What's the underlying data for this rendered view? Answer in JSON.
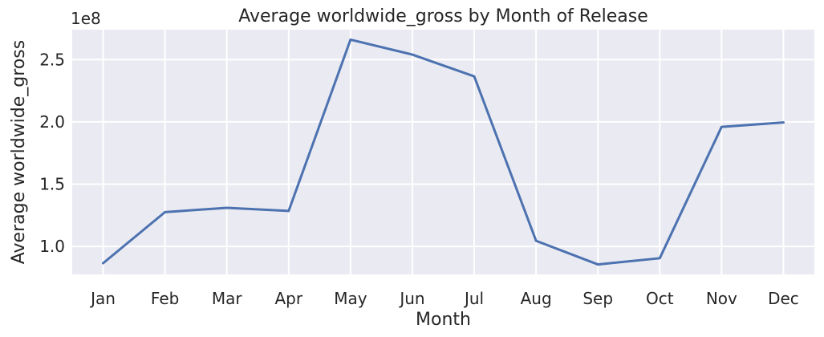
{
  "chart_data": {
    "type": "line",
    "title": "Average worldwide_gross by Month of Release",
    "xlabel": "Month",
    "ylabel": "Average worldwide_gross",
    "y_offset_label": "1e8",
    "categories": [
      "Jan",
      "Feb",
      "Mar",
      "Apr",
      "May",
      "Jun",
      "Jul",
      "Aug",
      "Sep",
      "Oct",
      "Nov",
      "Dec"
    ],
    "series": [
      {
        "values": [
          86500000,
          127500000,
          131000000,
          128500000,
          266000000,
          254000000,
          236500000,
          104500000,
          85500000,
          90500000,
          196000000,
          199500000
        ],
        "color": "#4c72b0"
      }
    ],
    "ylim": [
      77500000,
      274000000
    ],
    "yticks": [
      100000000,
      150000000,
      200000000,
      250000000
    ],
    "ytick_labels": [
      "1.0",
      "1.5",
      "2.0",
      "2.5"
    ],
    "grid": true,
    "background": "#eaeaf2",
    "grid_color": "#ffffff"
  }
}
